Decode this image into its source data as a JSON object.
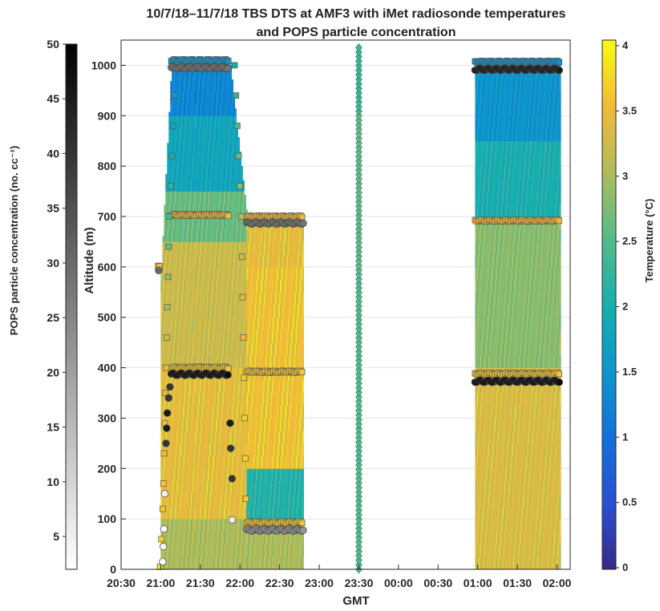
{
  "chart_data": {
    "type": "heatmap",
    "title_lines": [
      "10/7/18–11/7/18 TBS DTS at AMF3 with iMet radiosonde temperatures",
      "and POPS particle concentration"
    ],
    "xlabel": "GMT",
    "ylabel": "Altitude (m)",
    "ylim": [
      0,
      1050
    ],
    "xlim_minutes": [
      1230,
      1570
    ],
    "x_ticks": [
      {
        "t": 1230,
        "label": "20:30"
      },
      {
        "t": 1260,
        "label": "21:00"
      },
      {
        "t": 1290,
        "label": "21:30"
      },
      {
        "t": 1320,
        "label": "22:00"
      },
      {
        "t": 1350,
        "label": "22:30"
      },
      {
        "t": 1380,
        "label": "23:00"
      },
      {
        "t": 1410,
        "label": "23:30"
      },
      {
        "t": 1440,
        "label": "00:00"
      },
      {
        "t": 1470,
        "label": "00:30"
      },
      {
        "t": 1500,
        "label": "01:00"
      },
      {
        "t": 1530,
        "label": "01:30"
      },
      {
        "t": 1560,
        "label": "02:00"
      }
    ],
    "y_ticks": [
      0,
      100,
      200,
      300,
      400,
      500,
      600,
      700,
      800,
      900,
      1000
    ],
    "grid": "horizontal",
    "temperature_colorbar": {
      "label": "Temperature (°C)",
      "range": [
        0,
        4
      ],
      "ticks": [
        0,
        0.5,
        1,
        1.5,
        2,
        2.5,
        3,
        3.5,
        4
      ],
      "placement": "right"
    },
    "pops_colorbar": {
      "label": "POPS particle concentration (no. cc⁻¹)",
      "range": [
        2,
        50
      ],
      "ticks": [
        5,
        10,
        15,
        20,
        25,
        30,
        35,
        40,
        45,
        50
      ],
      "placement": "left"
    },
    "dts_blocks": [
      {
        "t_start": 1260,
        "t_end": 1286,
        "profile": "flight1"
      },
      {
        "t_start": 1286,
        "t_end": 1310,
        "profile": "flight1"
      },
      {
        "t_start": 1310,
        "t_end": 1325,
        "profile": "flight1"
      },
      {
        "t_start": 1325,
        "t_end": 1368,
        "profile": "flight2"
      },
      {
        "t_start": 1498,
        "t_end": 1562,
        "profile": "flight3"
      }
    ],
    "radiosonde_squares": [
      {
        "t": 1259.5,
        "alt": 5,
        "temp": 3.8
      },
      {
        "t": 1260.5,
        "alt": 60,
        "temp": 3.7
      },
      {
        "t": 1261.5,
        "alt": 120,
        "temp": 3.6
      },
      {
        "t": 1262,
        "alt": 170,
        "temp": 3.6
      },
      {
        "t": 1262.5,
        "alt": 230,
        "temp": 3.5
      },
      {
        "t": 1263,
        "alt": 290,
        "temp": 3.5
      },
      {
        "t": 1263.5,
        "alt": 350,
        "temp": 3.4
      },
      {
        "t": 1264,
        "alt": 400,
        "temp": 3.4
      },
      {
        "t": 1264.5,
        "alt": 460,
        "temp": 3.2
      },
      {
        "t": 1265,
        "alt": 520,
        "temp": 3.0
      },
      {
        "t": 1265.5,
        "alt": 580,
        "temp": 2.8
      },
      {
        "t": 1266,
        "alt": 640,
        "temp": 2.6
      },
      {
        "t": 1266.5,
        "alt": 700,
        "temp": 2.4
      },
      {
        "t": 1267.5,
        "alt": 760,
        "temp": 2.2
      },
      {
        "t": 1268.5,
        "alt": 820,
        "temp": 2.0
      },
      {
        "t": 1269.5,
        "alt": 880,
        "temp": 1.8
      },
      {
        "t": 1270.5,
        "alt": 940,
        "temp": 1.6
      },
      {
        "t": 1271.5,
        "alt": 1000,
        "temp": 1.5
      },
      {
        "t": 1316,
        "alt": 1000,
        "temp": 2.0
      },
      {
        "t": 1317,
        "alt": 940,
        "temp": 2.2
      },
      {
        "t": 1318,
        "alt": 880,
        "temp": 2.4
      },
      {
        "t": 1319,
        "alt": 820,
        "temp": 2.6
      },
      {
        "t": 1320,
        "alt": 760,
        "temp": 2.8
      },
      {
        "t": 1321,
        "alt": 700,
        "temp": 3.0
      },
      {
        "t": 1321.5,
        "alt": 620,
        "temp": 3.2
      },
      {
        "t": 1322,
        "alt": 540,
        "temp": 3.4
      },
      {
        "t": 1322.5,
        "alt": 460,
        "temp": 3.5
      },
      {
        "t": 1323,
        "alt": 380,
        "temp": 3.6
      },
      {
        "t": 1323.5,
        "alt": 300,
        "temp": 3.7
      },
      {
        "t": 1324,
        "alt": 220,
        "temp": 3.7
      },
      {
        "t": 1324.5,
        "alt": 140,
        "temp": 3.6
      }
    ],
    "radiosonde_square_segments": [
      {
        "t_start": 1258,
        "t_end": 1260,
        "alt": 600,
        "temp": 3.5
      },
      {
        "t_start": 1268,
        "t_end": 1312,
        "alt": 1010,
        "temp": 1.5
      },
      {
        "t_start": 1268,
        "t_end": 1312,
        "alt": 703,
        "temp": 3.5
      },
      {
        "t_start": 1268,
        "t_end": 1312,
        "alt": 400,
        "temp": 3.6
      },
      {
        "t_start": 1325,
        "t_end": 1368,
        "alt": 700,
        "temp": 3.5
      },
      {
        "t_start": 1325,
        "t_end": 1368,
        "alt": 392,
        "temp": 3.6
      },
      {
        "t_start": 1325,
        "t_end": 1368,
        "alt": 93,
        "temp": 3.6
      },
      {
        "t_start": 1498,
        "t_end": 1562,
        "alt": 1007,
        "temp": 1.4
      },
      {
        "t_start": 1498,
        "t_end": 1562,
        "alt": 692,
        "temp": 3.5
      },
      {
        "t_start": 1498,
        "t_end": 1562,
        "alt": 388,
        "temp": 3.6
      }
    ],
    "pops_circles": [
      {
        "t": 1261.5,
        "alt": 15,
        "conc": 3
      },
      {
        "t": 1262,
        "alt": 45,
        "conc": 4
      },
      {
        "t": 1262.5,
        "alt": 80,
        "conc": 3
      },
      {
        "t": 1263,
        "alt": 150,
        "conc": 5
      },
      {
        "t": 1264,
        "alt": 250,
        "conc": 40
      },
      {
        "t": 1264.5,
        "alt": 280,
        "conc": 45
      },
      {
        "t": 1265,
        "alt": 310,
        "conc": 45
      },
      {
        "t": 1266,
        "alt": 340,
        "conc": 40
      },
      {
        "t": 1267,
        "alt": 362,
        "conc": 40
      },
      {
        "t": 1258.5,
        "alt": 593,
        "conc": 30
      },
      {
        "t": 1314,
        "alt": 98,
        "conc": 5
      },
      {
        "t": 1314,
        "alt": 180,
        "conc": 40
      },
      {
        "t": 1313,
        "alt": 240,
        "conc": 40
      },
      {
        "t": 1312.5,
        "alt": 290,
        "conc": 45
      }
    ],
    "pops_circle_segments": [
      {
        "t_start": 1268,
        "t_end": 1311,
        "alt": 995,
        "conc": 28
      },
      {
        "t_start": 1268,
        "t_end": 1311,
        "alt": 387,
        "conc": 48
      },
      {
        "t_start": 1325,
        "t_end": 1368,
        "alt": 687,
        "conc": 28
      },
      {
        "t_start": 1325,
        "t_end": 1368,
        "alt": 78,
        "conc": 22
      },
      {
        "t_start": 1498,
        "t_end": 1562,
        "alt": 992,
        "conc": 45
      },
      {
        "t_start": 1498,
        "t_end": 1562,
        "alt": 373,
        "conc": 48
      }
    ],
    "vertical_diamond_profile": {
      "t": 1410,
      "alt_min": 0,
      "alt_max": 1040
    }
  }
}
